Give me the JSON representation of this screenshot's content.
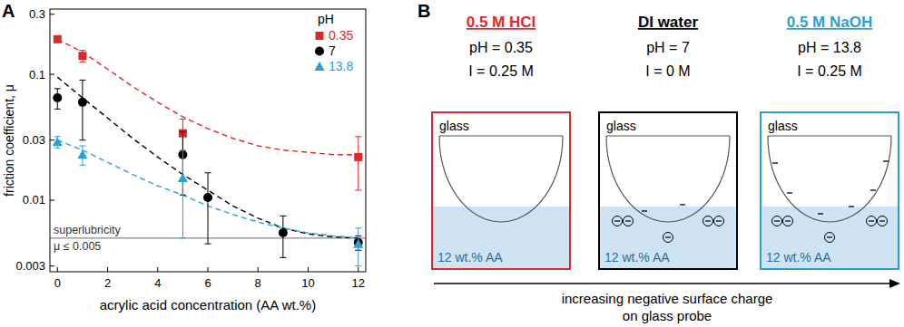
{
  "chart_data": {
    "type": "scatter",
    "title": "A",
    "x_label": "acrylic acid concentration (AA wt.%)",
    "y_label": "friction coefficient, μ",
    "legend_title": "pH",
    "legend": "upper right",
    "log": "y",
    "grid": false,
    "xlim": [
      -0.3,
      12.3
    ],
    "ylim": [
      0.0027,
      0.33
    ],
    "xticks": [
      0,
      2,
      4,
      6,
      8,
      10,
      12
    ],
    "yticks": [
      0.003,
      0.01,
      0.03,
      0.1,
      0.3
    ],
    "series": [
      {
        "name": "0.35",
        "color": "#e3262b",
        "marker": "square",
        "x": [
          0,
          1,
          5,
          12
        ],
        "values": [
          0.19,
          0.14,
          0.034,
          0.022
        ],
        "errors": [
          0.01,
          0.015,
          0.01,
          0.01
        ]
      },
      {
        "name": "7",
        "color": "#000000",
        "marker": "circle",
        "x": [
          0,
          1,
          5,
          6,
          9,
          12
        ],
        "values": [
          0.065,
          0.06,
          0.023,
          0.0105,
          0.0055,
          0.0046
        ],
        "errors": [
          0.012,
          0.03,
          0.012,
          0.006,
          0.002,
          0.0006
        ]
      },
      {
        "name": "13.8",
        "color": "#2a9fd6",
        "marker": "triangle",
        "x": [
          0,
          1,
          5,
          12
        ],
        "values": [
          0.029,
          0.023,
          0.015,
          0.0045
        ],
        "errors": [
          0.003,
          0.004,
          0.01,
          0.0015
        ]
      },
      {
        "type": "line",
        "line_style": "dashed",
        "color": "#e3262b",
        "x": [
          0,
          1,
          2,
          3,
          4,
          5,
          6,
          7,
          8,
          9,
          10,
          11,
          12
        ],
        "values": [
          0.19,
          0.15,
          0.11,
          0.08,
          0.06,
          0.046,
          0.037,
          0.031,
          0.027,
          0.025,
          0.024,
          0.023,
          0.023
        ]
      },
      {
        "type": "line",
        "line_style": "dashed",
        "color": "#000000",
        "x": [
          0,
          1,
          2,
          3,
          4,
          5,
          6,
          7,
          8,
          9,
          10,
          11,
          12
        ],
        "values": [
          0.095,
          0.065,
          0.045,
          0.031,
          0.022,
          0.016,
          0.012,
          0.009,
          0.0072,
          0.006,
          0.0054,
          0.0051,
          0.005
        ]
      },
      {
        "type": "line",
        "line_style": "dashed",
        "color": "#2a9fd6",
        "x": [
          0,
          1,
          2,
          3,
          4,
          5,
          6,
          7,
          8,
          9,
          10,
          11,
          12
        ],
        "values": [
          0.03,
          0.025,
          0.02,
          0.016,
          0.013,
          0.011,
          0.009,
          0.0077,
          0.0067,
          0.006,
          0.0055,
          0.0052,
          0.005
        ]
      }
    ],
    "reference_line": {
      "value": 0.005,
      "color": "#888888",
      "labels": [
        "superlubricity",
        "μ ≤ 0.005"
      ]
    }
  },
  "diagram": {
    "label": "B",
    "conditions": [
      {
        "solution": "0.5 M HCl",
        "ph": "pH = 0.35",
        "ionic_strength": "I = 0.25 M",
        "color": "#e3262b",
        "probe": "glass",
        "liquid": "12 wt.% AA"
      },
      {
        "solution": "DI water",
        "ph": "pH = 7",
        "ionic_strength": "I = 0 M",
        "color": "#000000",
        "probe": "glass",
        "liquid": "12 wt.% AA"
      },
      {
        "solution": "0.5 M NaOH",
        "ph": "pH = 13.8",
        "ionic_strength": "I = 0.25 M",
        "color": "#2a9fd6",
        "probe": "glass",
        "liquid": "12 wt.% AA"
      }
    ],
    "arrow_label": [
      "increasing negative surface charge",
      "on glass probe"
    ]
  }
}
